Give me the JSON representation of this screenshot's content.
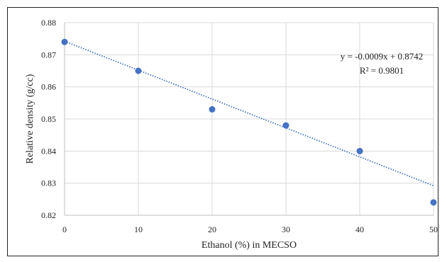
{
  "chart_data": {
    "type": "scatter",
    "xlabel": "Ethanol (%) in MECSO",
    "ylabel": "Relative density (g/cc)",
    "xlim": [
      0,
      50
    ],
    "ylim": [
      0.82,
      0.88
    ],
    "x_ticks": [
      "0",
      "10",
      "20",
      "30",
      "40",
      "50"
    ],
    "y_ticks": [
      "0.82",
      "0.83",
      "0.84",
      "0.85",
      "0.86",
      "0.87",
      "0.88"
    ],
    "grid": true,
    "series": [
      {
        "x": [
          0,
          10,
          20,
          30,
          40,
          50
        ],
        "y": [
          0.874,
          0.865,
          0.853,
          0.848,
          0.84,
          0.824
        ],
        "color": "#4472c4"
      }
    ],
    "trendline": {
      "slope": -0.0009,
      "intercept": 0.8742,
      "style": "dotted",
      "color": "#4472c4"
    },
    "annotations": {
      "equation": "y = -0.0009x + 0.8742",
      "r_squared": "R² = 0.9801"
    }
  }
}
